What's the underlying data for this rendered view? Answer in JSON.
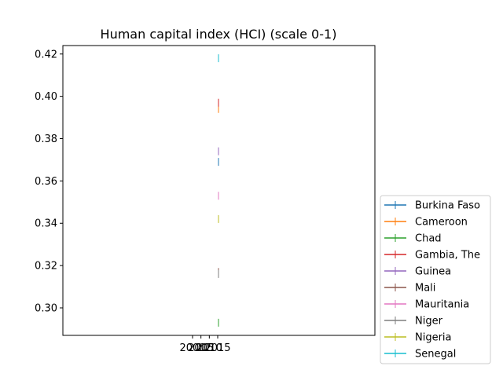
{
  "chart_data": {
    "type": "line",
    "title": "Human capital index (HCI) (scale 0-1)",
    "xlabel": "",
    "ylabel": "",
    "x": [
      2010,
      2017
    ],
    "x_tick_labels": [
      "2000",
      "2005",
      "2010",
      "2015"
    ],
    "ylim": [
      0.287,
      0.424
    ],
    "y_ticks": [
      "0.30",
      "0.32",
      "0.34",
      "0.36",
      "0.38",
      "0.40",
      "0.42"
    ],
    "grid": false,
    "legend_position": "outside-right",
    "series": [
      {
        "name": "Burkina Faso",
        "color": "#1f77b4",
        "values": [
          null,
          0.369
        ]
      },
      {
        "name": "Cameroon",
        "color": "#ff7f0e",
        "values": [
          null,
          0.394
        ]
      },
      {
        "name": "Chad",
        "color": "#2ca02c",
        "values": [
          null,
          0.293
        ]
      },
      {
        "name": "Gambia, The",
        "color": "#d62728",
        "values": [
          null,
          0.397
        ]
      },
      {
        "name": "Guinea",
        "color": "#9467bd",
        "values": [
          null,
          0.374
        ]
      },
      {
        "name": "Mali",
        "color": "#8c564b",
        "values": [
          null,
          0.317
        ]
      },
      {
        "name": "Mauritania",
        "color": "#e377c2",
        "values": [
          null,
          0.353
        ]
      },
      {
        "name": "Niger",
        "color": "#7f7f7f",
        "values": [
          null,
          0.316
        ]
      },
      {
        "name": "Nigeria",
        "color": "#bcbd22",
        "values": [
          null,
          0.342
        ]
      },
      {
        "name": "Senegal",
        "color": "#17becf",
        "values": [
          null,
          0.418
        ]
      }
    ]
  }
}
